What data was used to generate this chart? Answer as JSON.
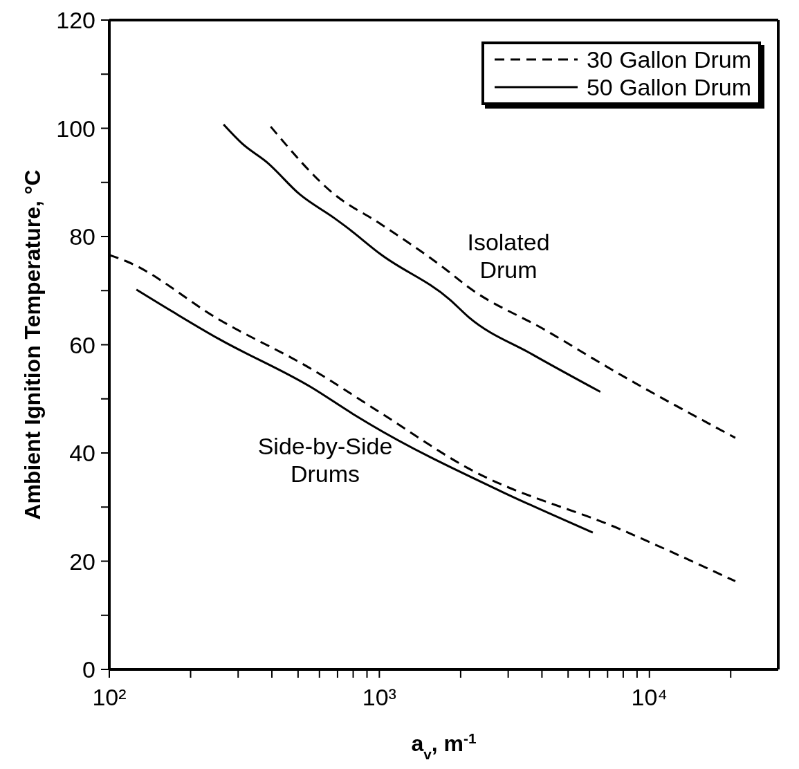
{
  "chart_data": {
    "type": "line",
    "xlabel": "a$_{v}$, m$^{-1}$",
    "ylabel": "Ambient Ignition Temperature, °C",
    "log": "x",
    "xlim": [
      100,
      30000
    ],
    "ylim": [
      0,
      120
    ],
    "xticks": [
      {
        "value": 100,
        "label": "10²"
      },
      {
        "value": 200,
        "label": null
      },
      {
        "value": 300,
        "label": null
      },
      {
        "value": 400,
        "label": null
      },
      {
        "value": 500,
        "label": null
      },
      {
        "value": 600,
        "label": null
      },
      {
        "value": 700,
        "label": null
      },
      {
        "value": 800,
        "label": null
      },
      {
        "value": 900,
        "label": null
      },
      {
        "value": 1000,
        "label": "10³"
      },
      {
        "value": 2000,
        "label": null
      },
      {
        "value": 3000,
        "label": null
      },
      {
        "value": 4000,
        "label": null
      },
      {
        "value": 5000,
        "label": null
      },
      {
        "value": 6000,
        "label": null
      },
      {
        "value": 7000,
        "label": null
      },
      {
        "value": 8000,
        "label": null
      },
      {
        "value": 9000,
        "label": null
      },
      {
        "value": 10000,
        "label": "10⁴"
      },
      {
        "value": 20000,
        "label": null
      }
    ],
    "yticks": [
      0,
      {
        "value": 10,
        "label": null
      },
      20,
      {
        "value": 30,
        "label": null
      },
      40,
      {
        "value": 50,
        "label": null
      },
      60,
      {
        "value": 70,
        "label": null
      },
      80,
      {
        "value": 90,
        "label": null
      },
      100,
      {
        "value": 110,
        "label": null
      },
      120
    ],
    "legend": "top right",
    "marker": "none",
    "series": [
      {
        "name": "30 Gallon Drum",
        "color": "#000000",
        "line_style": "dashed",
        "x": [
          396,
          681,
          1012,
          1754,
          2142,
          4120,
          7310,
          20800
        ],
        "values": [
          100.3,
          87.8,
          82.3,
          74.0,
          70.6,
          62.7,
          55.3,
          42.8
        ]
      },
      {
        "name": "50 Gallon Drum",
        "color": "#000000",
        "line_style": "solid",
        "x": [
          265,
          310,
          386,
          507,
          681,
          753,
          1012,
          1828,
          2142,
          3690,
          6580
        ],
        "values": [
          100.7,
          97.2,
          93.6,
          87.8,
          83.4,
          81.8,
          76.7,
          68.3,
          65.1,
          58.2,
          51.3
        ]
      },
      {
        "color": "#000000",
        "line_style": "dashed",
        "x": [
          100,
          116,
          256,
          561,
          1012,
          2127,
          7800,
          20800
        ],
        "values": [
          76.6,
          75.4,
          64.6,
          55.5,
          47.4,
          37.2,
          25.9,
          16.3
        ]
      },
      {
        "color": "#000000",
        "line_style": "solid",
        "x": [
          126,
          256,
          561,
          799,
          916,
          2824,
          6170
        ],
        "values": [
          70.2,
          61.0,
          52.1,
          47.2,
          45.4,
          32.9,
          25.3
        ]
      }
    ],
    "annotations": [
      "Isolated\nDrum",
      "Side-by-Side\nDrums"
    ]
  }
}
